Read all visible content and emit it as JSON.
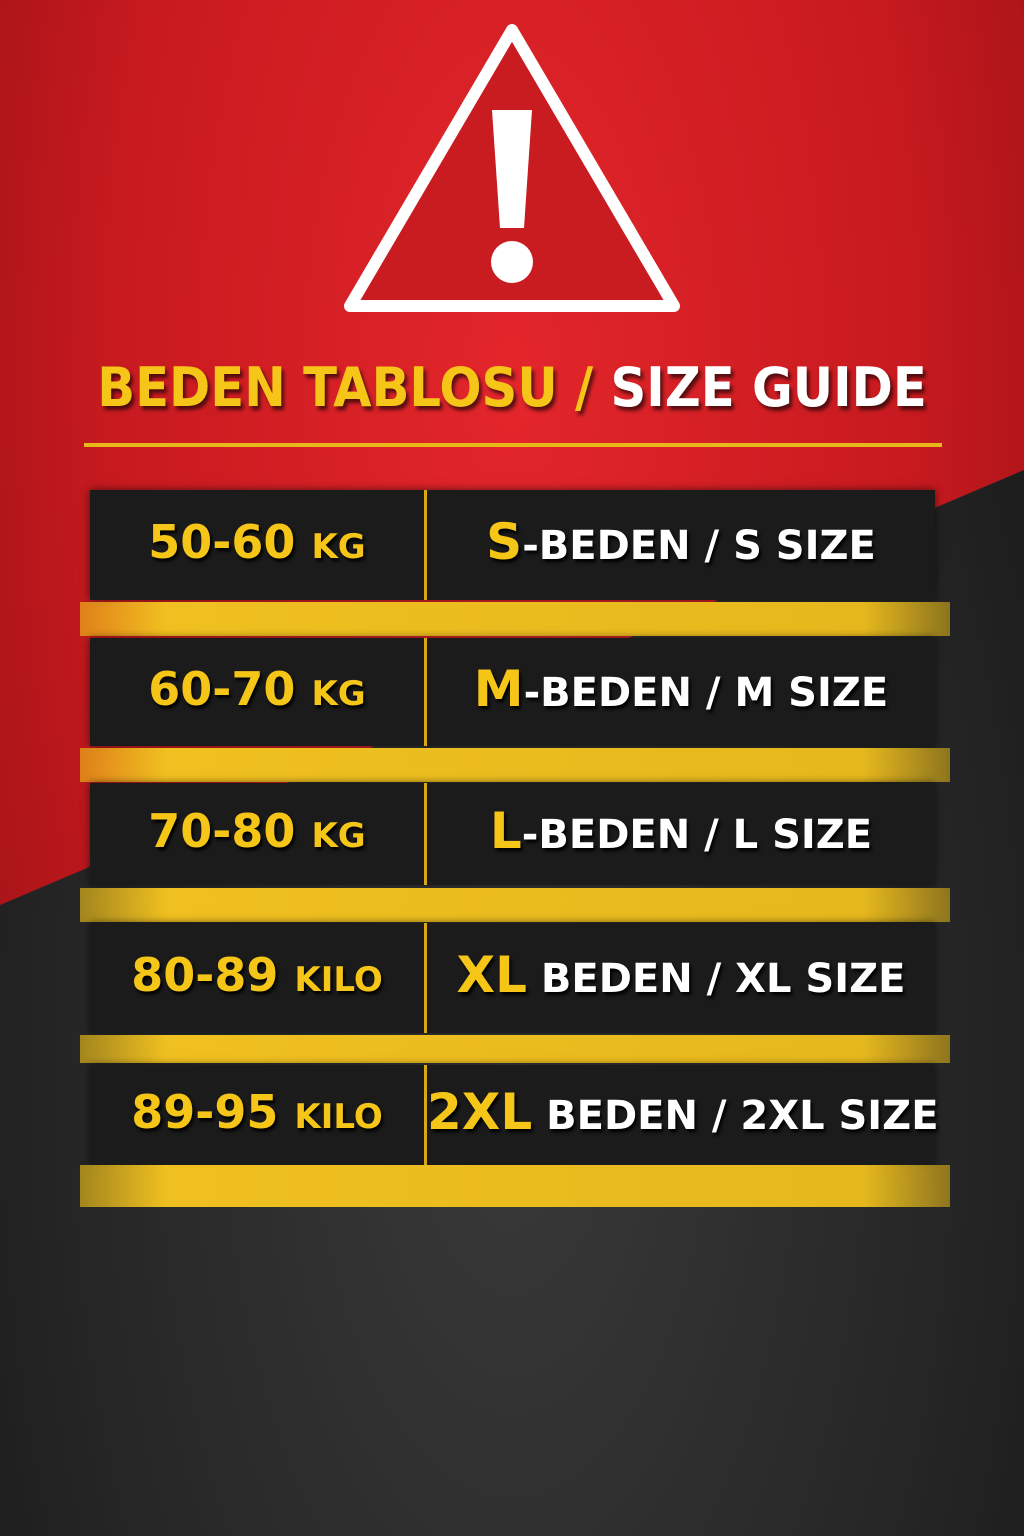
{
  "title": {
    "part1": "BEDEN TABLOSU",
    "slash": "/",
    "part2": "SIZE GUIDE"
  },
  "icon": "warning-triangle-icon",
  "colors": {
    "red": "#d41f24",
    "yellow": "#f5c518",
    "dark": "#1b1b1b",
    "white": "#ffffff"
  },
  "rows": [
    {
      "range": "50-60",
      "unit": "KG",
      "letter": "S",
      "rest": "-BEDEN / S SIZE"
    },
    {
      "range": "60-70",
      "unit": "KG",
      "letter": "M",
      "rest": "-BEDEN / M SIZE"
    },
    {
      "range": "70-80",
      "unit": "KG",
      "letter": "L",
      "rest": "-BEDEN / L SIZE"
    },
    {
      "range": "80-89",
      "unit": "KILO",
      "letter": "XL",
      "rest": " BEDEN / XL SIZE"
    },
    {
      "range": "89-95",
      "unit": "KILO",
      "letter": "2XL",
      "rest": " BEDEN / 2XL SIZE"
    }
  ]
}
